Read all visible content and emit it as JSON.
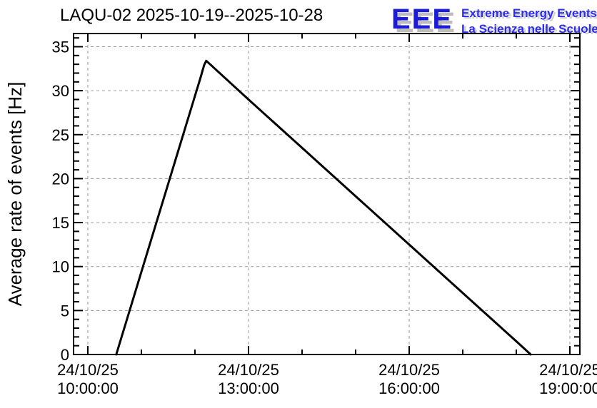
{
  "header": {
    "title": "LAQU-02 2025-10-19--2025-10-28"
  },
  "logo": {
    "acronym": "EEE",
    "line1": "Extreme Energy Events",
    "line2": "La Scienza nelle Scuole",
    "acronym_color": "#1c1cd8",
    "text_color": "#2d2dee",
    "shadow_color": "#bdbdbd"
  },
  "chart_data": {
    "type": "line",
    "title": "LAQU-02 2025-10-19--2025-10-28",
    "ylabel": "Average rate of events [Hz]",
    "xlabel": "",
    "legend": null,
    "x_axis": {
      "kind": "time",
      "range_hours": [
        9.7333,
        19.1867
      ],
      "minor_step_hours": 1,
      "major_ticks": [
        {
          "hour": 10,
          "date": "24/10/25",
          "time": "10:00:00"
        },
        {
          "hour": 13,
          "date": "24/10/25",
          "time": "13:00:00"
        },
        {
          "hour": 16,
          "date": "24/10/25",
          "time": "16:00:00"
        },
        {
          "hour": 19,
          "date": "24/10/25",
          "time": "19:00:00"
        }
      ]
    },
    "y_axis": {
      "range": [
        0,
        36.5
      ],
      "major_step": 5,
      "minor_step": 1,
      "tick_labels": [
        "0",
        "5",
        "10",
        "15",
        "20",
        "25",
        "30",
        "35"
      ]
    },
    "grid": {
      "show": true,
      "color": "#9a9a9a",
      "dash": "4 4"
    },
    "frame_color": "#000000",
    "series": [
      {
        "name": "average-rate-of-events",
        "color": "#000000",
        "width": 3,
        "points_hours_hz": [
          [
            10.53,
            0.0
          ],
          [
            11.0,
            9.4
          ],
          [
            11.5,
            19.4
          ],
          [
            12.0,
            29.4
          ],
          [
            12.1,
            31.4
          ],
          [
            12.17,
            32.9
          ],
          [
            12.21,
            33.4
          ],
          [
            13.0,
            29.0
          ],
          [
            14.0,
            23.5
          ],
          [
            15.0,
            18.0
          ],
          [
            16.0,
            12.5
          ],
          [
            17.0,
            7.0
          ],
          [
            18.0,
            1.5
          ],
          [
            18.27,
            0.0
          ]
        ]
      }
    ]
  }
}
